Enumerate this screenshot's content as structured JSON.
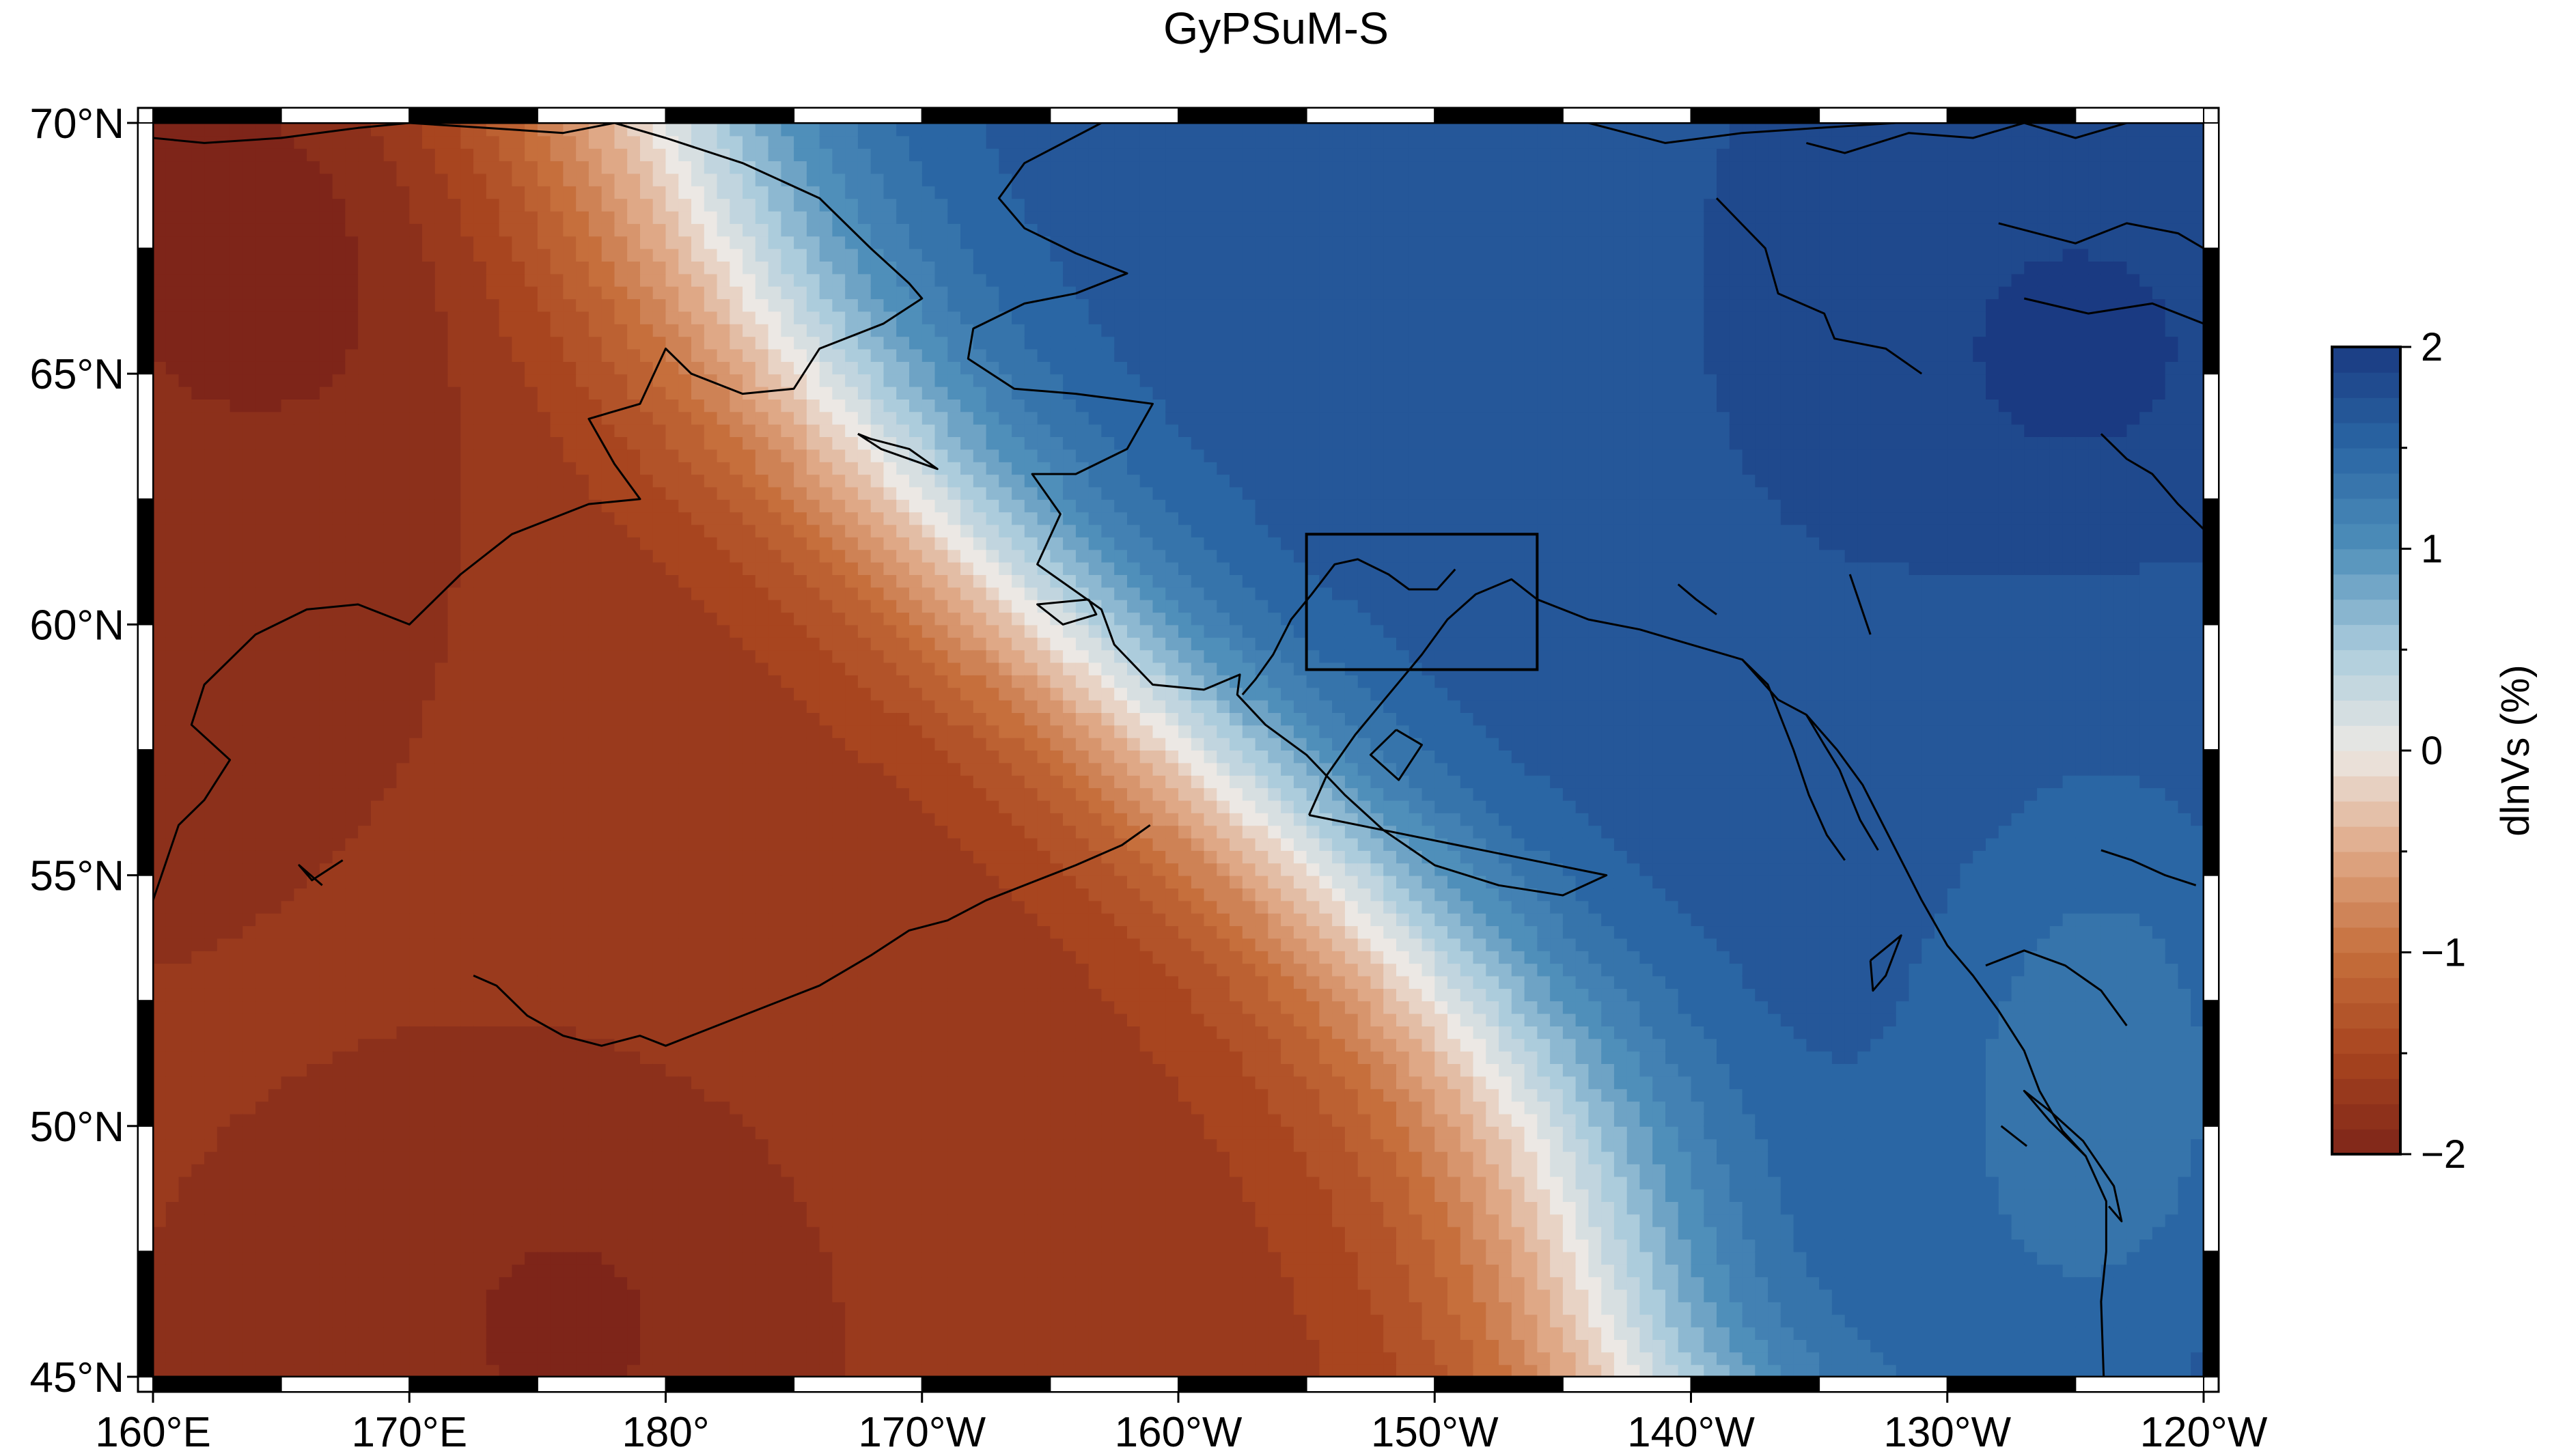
{
  "map": {
    "title": "GyPSuM-S",
    "lon_range": [
      160,
      240
    ],
    "lat_range": [
      45,
      70
    ],
    "x_ticks": [
      {
        "lon": 160,
        "label": "160°E"
      },
      {
        "lon": 170,
        "label": "170°E"
      },
      {
        "lon": 180,
        "label": "180°"
      },
      {
        "lon": 190,
        "label": "170°W"
      },
      {
        "lon": 200,
        "label": "160°W"
      },
      {
        "lon": 210,
        "label": "150°W"
      },
      {
        "lon": 220,
        "label": "140°W"
      },
      {
        "lon": 230,
        "label": "130°W"
      },
      {
        "lon": 240,
        "label": "120°W"
      }
    ],
    "y_ticks": [
      {
        "lat": 70,
        "label": "70°N"
      },
      {
        "lat": 65,
        "label": "65°N"
      },
      {
        "lat": 60,
        "label": "60°N"
      },
      {
        "lat": 55,
        "label": "55°N"
      },
      {
        "lat": 50,
        "label": "50°N"
      },
      {
        "lat": 45,
        "label": "45°N"
      }
    ],
    "study_box": {
      "lon_min": 205,
      "lon_max": 214,
      "lat_min": 59.1,
      "lat_max": 61.8
    }
  },
  "colorbar": {
    "label": "dlnVs (%)",
    "range": [
      -2,
      2
    ],
    "ticks": [
      {
        "value": 2,
        "label": "2"
      },
      {
        "value": 1,
        "label": "1"
      },
      {
        "value": 0,
        "label": "0"
      },
      {
        "value": -1,
        "label": "−1"
      },
      {
        "value": -2,
        "label": "−2"
      }
    ],
    "colors": {
      "low": "#8b2a1c",
      "mid": "#efeae6",
      "high": "#1a3a85"
    }
  }
}
